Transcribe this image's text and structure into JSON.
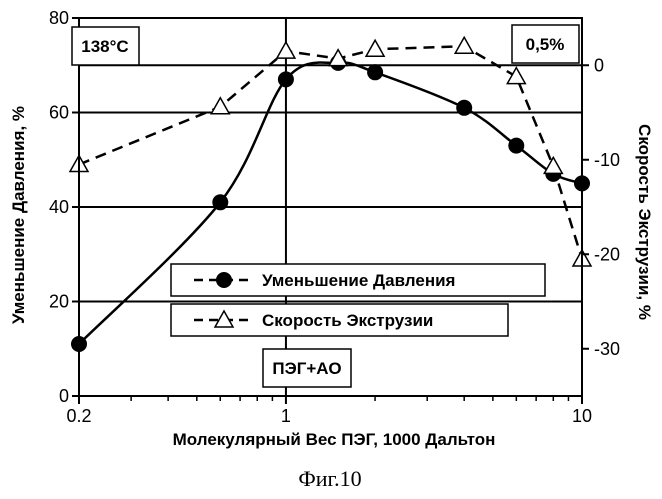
{
  "chart_data": {
    "type": "line",
    "xlabel": "Молекулярный Вес ПЭГ, 1000 Дальтон",
    "ylabel_left": "Уменьшение Давления, %",
    "ylabel_right": "Скорость Экструзии, %",
    "x_scale": "log",
    "xlim": [
      0.2,
      10
    ],
    "ylim_left": [
      0,
      80
    ],
    "ylim_right": [
      -35,
      5
    ],
    "x_ticks": [
      0.2,
      1,
      10
    ],
    "x_tick_labels": [
      "0.2",
      "1",
      "10"
    ],
    "y_left_ticks": [
      0,
      20,
      40,
      60,
      80
    ],
    "y_left_tick_labels": [
      "0",
      "20",
      "40",
      "60",
      "80"
    ],
    "y_right_ticks": [
      0,
      -10,
      -20,
      -30
    ],
    "y_right_tick_labels": [
      "0",
      "-10",
      "-20",
      "-30"
    ],
    "grid": "horizontal",
    "legend_placement": "center-right",
    "series": [
      {
        "name": "Уменьшение Давления",
        "axis": "left",
        "marker": "filled-circle",
        "line_style": "solid",
        "x": [
          0.2,
          0.6,
          1.0,
          1.5,
          2.0,
          4.0,
          6.0,
          8.0,
          10.0
        ],
        "y": [
          11,
          41,
          67,
          70.5,
          68.5,
          61,
          53,
          47,
          45
        ]
      },
      {
        "name": "Скорость Экструзии",
        "axis": "right",
        "marker": "open-triangle",
        "line_style": "dashed",
        "x": [
          0.2,
          0.6,
          1.0,
          1.5,
          2.0,
          4.0,
          6.0,
          8.0,
          10.0
        ],
        "y": [
          -10.5,
          -4.4,
          1.5,
          0.7,
          1.7,
          2.0,
          -1.2,
          -10.7,
          -20.5
        ]
      }
    ],
    "annotations": [
      "138°C",
      "0,5%",
      "ПЭГ+АО"
    ]
  },
  "figure_caption": "Фиг.10",
  "colors": {
    "ink": "#000000",
    "background": "#ffffff"
  }
}
